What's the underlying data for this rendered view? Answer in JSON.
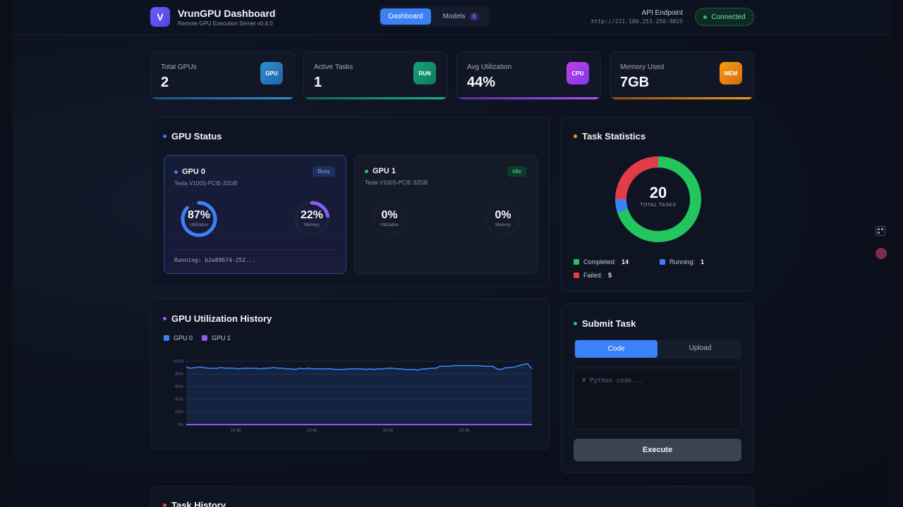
{
  "header": {
    "logo_letter": "V",
    "title": "VrunGPU Dashboard",
    "subtitle": "Remote GPU Execution Server v0.4.0",
    "nav": {
      "dashboard": "Dashboard",
      "models": "Models",
      "models_count": "6"
    },
    "api_label": "API Endpoint",
    "api_url": "http://211.180.253.250:9825",
    "status": "Connected"
  },
  "stats": [
    {
      "label": "Total GPUs",
      "value": "2",
      "badge": "GPU",
      "color": "#2f8fcf"
    },
    {
      "label": "Active Tasks",
      "value": "1",
      "badge": "RUN",
      "color": "#10b981"
    },
    {
      "label": "Avg Utilization",
      "value": "44%",
      "badge": "CPU",
      "color": "#a855f7"
    },
    {
      "label": "Memory Used",
      "value": "7GB",
      "badge": "MEM",
      "color": "#f59e0b"
    }
  ],
  "gpu_status": {
    "title": "GPU Status",
    "cards": [
      {
        "name": "GPU 0",
        "model": "Tesla V100S-PCIE-32GB",
        "status": "Busy",
        "util": 87,
        "util_text": "87%",
        "util_label": "Utilization",
        "mem": 22,
        "mem_text": "22%",
        "mem_label": "Memory",
        "running": "Running: b2e89674-252..."
      },
      {
        "name": "GPU 1",
        "model": "Tesla V100S-PCIE-32GB",
        "status": "Idle",
        "util": 0,
        "util_text": "0%",
        "util_label": "Utilization",
        "mem": 0,
        "mem_text": "0%",
        "mem_label": "Memory"
      }
    ]
  },
  "task_stats": {
    "title": "Task Statistics",
    "total": "20",
    "total_label": "TOTAL TASKS",
    "completed_label": "Completed:",
    "completed": "14",
    "running_label": "Running:",
    "running": "1",
    "failed_label": "Failed:",
    "failed": "5",
    "colors": {
      "completed": "#22c55e",
      "running": "#3b82f6",
      "failed": "#e23b4a"
    }
  },
  "util_history": {
    "title": "GPU Utilization History",
    "legend": [
      "GPU 0",
      "GPU 1"
    ]
  },
  "chart_data": {
    "type": "line",
    "title": "GPU Utilization History",
    "xlabel": "",
    "ylabel": "",
    "ylim": [
      0,
      100
    ],
    "y_ticks": [
      "0%",
      "20%",
      "40%",
      "60%",
      "80%",
      "100%"
    ],
    "x_ticks": [
      "19:46",
      "19:46",
      "19:46",
      "19:46"
    ],
    "series": [
      {
        "name": "GPU 0",
        "color": "#3b82f6",
        "values": [
          91,
          89,
          90,
          91,
          90,
          89,
          89,
          89,
          90,
          89,
          89,
          89,
          88,
          89,
          89,
          89,
          89,
          88,
          89,
          89,
          90,
          89,
          89,
          88,
          88,
          87,
          89,
          88,
          89,
          88,
          88,
          88,
          88,
          88,
          87,
          87,
          87,
          88,
          88,
          88,
          88,
          87,
          88,
          87,
          88,
          88,
          89,
          89,
          88,
          88,
          87,
          87,
          87,
          86,
          88,
          88,
          89,
          89,
          92,
          92,
          92,
          93,
          93,
          93,
          93,
          93,
          93,
          93,
          92,
          92,
          92,
          88,
          87,
          90,
          90,
          91,
          93,
          95,
          96,
          88
        ]
      },
      {
        "name": "GPU 1",
        "color": "#8b5cf6",
        "values": [
          0,
          0,
          0,
          0,
          0,
          0,
          0,
          0,
          0,
          0,
          0,
          0,
          0,
          0,
          0,
          0,
          0,
          0,
          0,
          0,
          0,
          0,
          0,
          0,
          0,
          0,
          0,
          0,
          0,
          0,
          0,
          0,
          0,
          0,
          0,
          0,
          0,
          0,
          0,
          0,
          0,
          0,
          0,
          0,
          0,
          0,
          0,
          0,
          0,
          0,
          0,
          0,
          0,
          0,
          0,
          0,
          0,
          0,
          0,
          0,
          0,
          0,
          0,
          0,
          0,
          0,
          0,
          0,
          0,
          0,
          0,
          0,
          0,
          0,
          0,
          0,
          0,
          0,
          0,
          0
        ]
      }
    ]
  },
  "submit_task": {
    "title": "Submit Task",
    "tab_code": "Code",
    "tab_upload": "Upload",
    "placeholder": "# Python code...",
    "execute": "Execute"
  },
  "task_history": {
    "title": "Task History"
  }
}
